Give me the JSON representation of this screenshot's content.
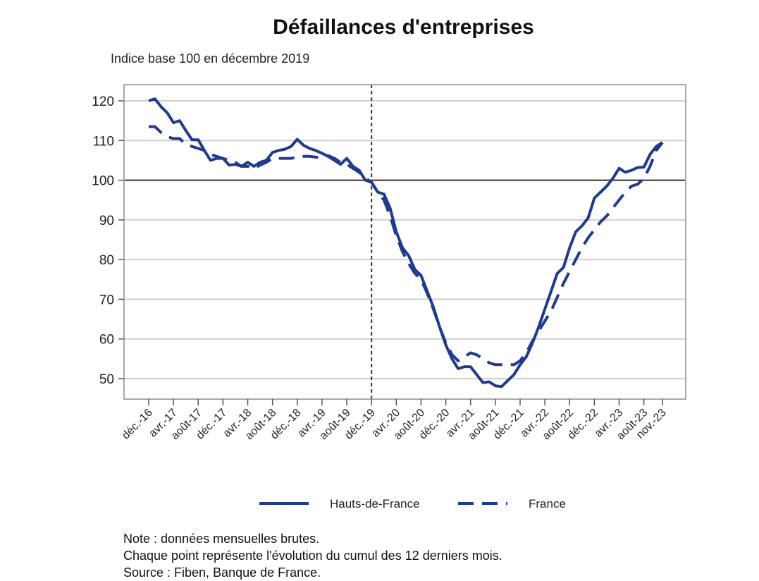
{
  "chart_data": {
    "type": "line",
    "title": "Défaillances d'entreprises",
    "subtitle": "Indice base 100 en décembre 2019",
    "xlabel": "",
    "ylabel": "",
    "ylim": [
      45,
      122
    ],
    "yticks": [
      50,
      60,
      70,
      80,
      90,
      100,
      110,
      120
    ],
    "x_range": [
      "déc.-16",
      "déc.-23"
    ],
    "reference_line": {
      "y": 100,
      "style": "solid"
    },
    "reference_vline": {
      "x": "déc.-19",
      "style": "dashed"
    },
    "x_tick_labels": [
      "déc.-16",
      "avr.-17",
      "août-17",
      "déc.-17",
      "avr.-18",
      "août-18",
      "déc.-18",
      "avr.-19",
      "août-19",
      "déc.-19",
      "avr.-20",
      "août-20",
      "déc.-20",
      "avr.-21",
      "août-21",
      "déc.-21",
      "avr.-22",
      "août-22",
      "déc.-22",
      "avr.-23",
      "août-23",
      "nov.-23"
    ],
    "x_tick_positions": [
      0,
      4,
      8,
      12,
      16,
      20,
      24,
      28,
      32,
      36,
      40,
      44,
      48,
      52,
      56,
      60,
      64,
      68,
      72,
      76,
      80,
      83
    ],
    "grid": true,
    "legend": {
      "placement": "bottom"
    },
    "series": [
      {
        "name": "Hauts-de-France",
        "style": "solid",
        "color": "#1f3a8f",
        "values": [
          120,
          120.5,
          118.5,
          117,
          114.5,
          115,
          112.5,
          110.2,
          110.2,
          107.5,
          105,
          105.5,
          105.5,
          103.8,
          104,
          103.5,
          104.5,
          103.5,
          104.5,
          105,
          107,
          107.5,
          107.8,
          108.5,
          110.3,
          108.8,
          108,
          107.5,
          106.8,
          106,
          105,
          104,
          105.5,
          103.5,
          102.5,
          100,
          99.5,
          97,
          96.5,
          93,
          87,
          83,
          81,
          77.5,
          76,
          72,
          68,
          63,
          58.5,
          55,
          52.5,
          53,
          53,
          51,
          49,
          49.2,
          48.2,
          48,
          49.5,
          51,
          53.5,
          55.5,
          59,
          63,
          67.5,
          72,
          76.5,
          78,
          83,
          87,
          88.5,
          90.5,
          95.5,
          97,
          98.5,
          100.5,
          103,
          102,
          102.5,
          103.2,
          103.3,
          106.5,
          108.5,
          109.5
        ]
      },
      {
        "name": "France",
        "style": "dashed",
        "color": "#1f3a8f",
        "values": [
          113.5,
          113.5,
          112,
          111,
          110.5,
          110.5,
          109,
          108.5,
          108,
          107.5,
          106.5,
          106,
          105.5,
          105,
          104.5,
          103.5,
          103.5,
          103,
          103.8,
          104.5,
          105.5,
          105.5,
          105.5,
          105.5,
          105.8,
          106,
          106,
          105.8,
          105.7,
          106.2,
          105.5,
          104.5,
          104,
          103,
          102,
          100.5,
          99.5,
          97,
          95,
          91,
          86,
          82,
          79,
          76.5,
          75,
          71.5,
          67.5,
          63,
          59,
          56,
          54.5,
          55.5,
          56.5,
          56,
          55,
          54,
          53.5,
          53.5,
          53.5,
          53.5,
          54.5,
          56.5,
          59.5,
          62,
          64.5,
          67,
          70.5,
          74,
          77,
          80,
          83,
          85.5,
          87.5,
          89.5,
          91,
          93,
          95,
          97,
          98.5,
          99,
          100.5,
          103.5,
          107.5,
          109.5
        ]
      }
    ]
  },
  "notes": [
    "Note : données mensuelles brutes.",
    "Chaque point représente l'évolution du cumul des 12 derniers mois.",
    "Source : Fiben, Banque de France."
  ]
}
